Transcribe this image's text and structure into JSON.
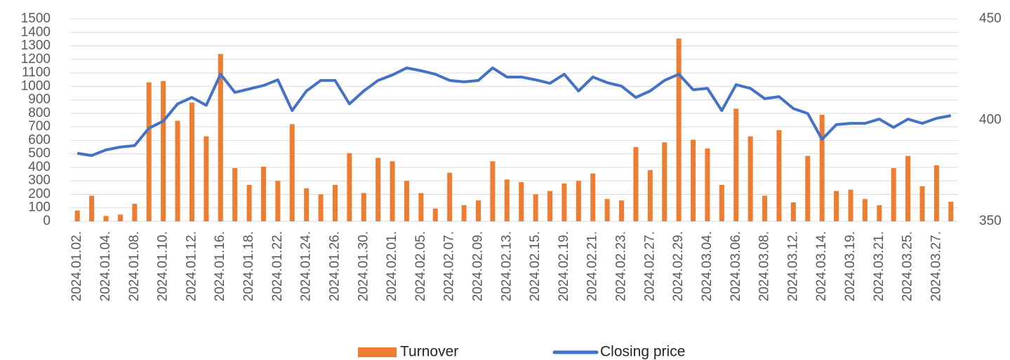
{
  "chart_data": {
    "type": "bar_line",
    "categories": [
      "2024.01.02.",
      null,
      "2024.01.04.",
      null,
      "2024.01.08.",
      null,
      "2024.01.10.",
      null,
      "2024.01.12.",
      null,
      "2024.01.16.",
      null,
      "2024.01.18.",
      null,
      "2024.01.22.",
      null,
      "2024.01.24.",
      null,
      "2024.01.26.",
      null,
      "2024.01.30.",
      null,
      "2024.02.01.",
      null,
      "2024.02.05.",
      null,
      "2024.02.07.",
      null,
      "2024.02.09.",
      null,
      "2024.02.13.",
      null,
      "2024.02.15.",
      null,
      "2024.02.19.",
      null,
      "2024.02.21.",
      null,
      "2024.02.23.",
      null,
      "2024.02.27.",
      null,
      "2024.02.29.",
      null,
      "2024.03.04.",
      null,
      "2024.03.06.",
      null,
      "2024.03.08.",
      null,
      "2024.03.12.",
      null,
      "2024.03.14.",
      null,
      "2024.03.19.",
      null,
      "2024.03.21.",
      null,
      "2024.03.25.",
      null,
      "2024.03.27.",
      null
    ],
    "series": [
      {
        "name": "Turnover",
        "color": "#ed7d31",
        "type": "bar",
        "axis": "y",
        "values": [
          80,
          190,
          40,
          50,
          130,
          1030,
          1040,
          745,
          880,
          630,
          1240,
          395,
          270,
          405,
          300,
          720,
          245,
          200,
          270,
          505,
          210,
          470,
          445,
          300,
          210,
          95,
          360,
          120,
          155,
          445,
          310,
          290,
          200,
          225,
          280,
          300,
          355,
          165,
          155,
          550,
          380,
          585,
          1355,
          605,
          540,
          270,
          835,
          630,
          190,
          675,
          140,
          485,
          790,
          225,
          235,
          165,
          120,
          395,
          485,
          260,
          415,
          145
        ]
      },
      {
        "name": "Closing price",
        "color": "#4472c4",
        "type": "line",
        "axis": "y2",
        "values": [
          383.6,
          382.5,
          385.3,
          386.7,
          387.4,
          396,
          399.5,
          408,
          411.2,
          407.3,
          422.7,
          413.7,
          415.4,
          417.1,
          419.9,
          404.7,
          414.4,
          419.6,
          419.6,
          408,
          414.4,
          419.6,
          422.3,
          425.8,
          424.4,
          422.7,
          419.6,
          418.9,
          419.6,
          425.8,
          421.3,
          421.3,
          419.9,
          418.2,
          422.7,
          414.4,
          421.3,
          418.5,
          416.8,
          411.2,
          414.4,
          419.6,
          422.7,
          415,
          415.7,
          404.7,
          417.5,
          415.7,
          410.6,
          411.6,
          405.7,
          403.3,
          390.5,
          397.8,
          398.4,
          398.4,
          400.5,
          396.4,
          400.5,
          398.4,
          400.9,
          402.2
        ]
      }
    ],
    "ylim": [
      0,
      1500
    ],
    "yticks": [
      0,
      100,
      200,
      300,
      400,
      500,
      600,
      700,
      800,
      900,
      1000,
      1100,
      1200,
      1300,
      1400,
      1500
    ],
    "y2lim": [
      350,
      450
    ],
    "y2ticks": [
      350,
      400,
      450
    ],
    "grid": true,
    "legend": "bottom"
  }
}
